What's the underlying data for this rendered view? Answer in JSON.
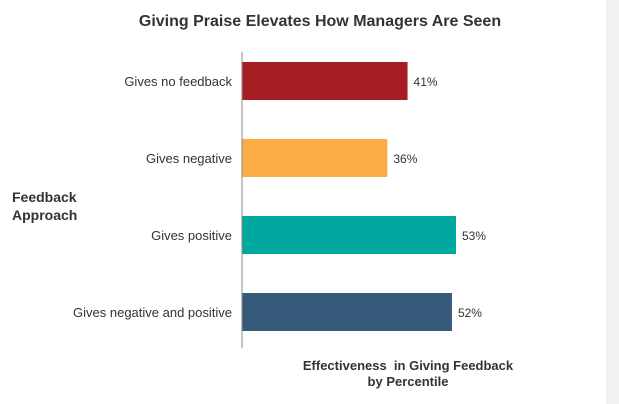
{
  "chart_data": {
    "type": "bar",
    "orientation": "horizontal",
    "title": "Giving Praise Elevates How Managers Are Seen",
    "ylabel": [
      "Feedback",
      "Approach"
    ],
    "xlabel": [
      "Effectiveness  in Giving Feedback",
      "by Percentile"
    ],
    "categories": [
      "Gives no feedback",
      "Gives negative",
      "Gives positive",
      "Gives negative and positive"
    ],
    "values": [
      41,
      36,
      53,
      52
    ],
    "value_labels": [
      "41%",
      "36%",
      "53%",
      "52%"
    ],
    "colors": [
      "#a61d24",
      "#fbad45",
      "#00a89f",
      "#375a7a"
    ],
    "xlim": [
      0,
      60
    ],
    "grid": false,
    "legend": "none"
  }
}
